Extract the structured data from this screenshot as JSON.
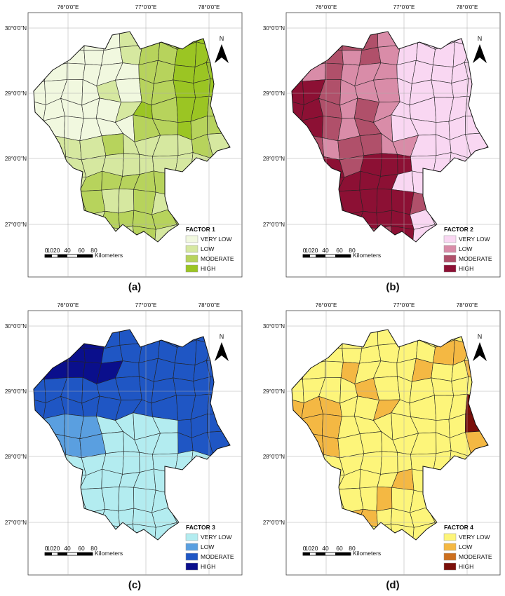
{
  "panels": [
    {
      "label": "(a)",
      "legend_title": "FACTOR 1",
      "legend": [
        {
          "label": "VERY LOW",
          "color": "#f1f8df"
        },
        {
          "label": "LOW",
          "color": "#d6e8a0"
        },
        {
          "label": "MODERATE",
          "color": "#b7d35c"
        },
        {
          "label": "HIGH",
          "color": "#9bc523"
        }
      ]
    },
    {
      "label": "(b)",
      "legend_title": "FACTOR 2",
      "legend": [
        {
          "label": "VERY LOW",
          "color": "#f9d7f2"
        },
        {
          "label": "LOW",
          "color": "#d98ca8"
        },
        {
          "label": "MODERATE",
          "color": "#b0506a"
        },
        {
          "label": "HIGH",
          "color": "#8c1034"
        }
      ]
    },
    {
      "label": "(c)",
      "legend_title": "FACTOR 3",
      "legend": [
        {
          "label": "VERY LOW",
          "color": "#b3ecf0"
        },
        {
          "label": "LOW",
          "color": "#5a9fe0"
        },
        {
          "label": "MODERATE",
          "color": "#1f56c4"
        },
        {
          "label": "HIGH",
          "color": "#0a0f8c"
        }
      ]
    },
    {
      "label": "(d)",
      "legend_title": "FACTOR 4",
      "legend": [
        {
          "label": "VERY LOW",
          "color": "#fdf57a"
        },
        {
          "label": "LOW",
          "color": "#f4b843"
        },
        {
          "label": "MODERATE",
          "color": "#cc6f1e"
        },
        {
          "label": "HIGH",
          "color": "#7a0f0a"
        }
      ]
    }
  ],
  "longitude_labels": [
    "76°0'0\"E",
    "77°0'0\"E",
    "78°0'0\"E"
  ],
  "latitude_labels": [
    "30°0'0\"N",
    "29°0'0\"N",
    "28°0'0\"N",
    "27°0'0\"N"
  ],
  "north_label": "N",
  "scale_labels": [
    "0",
    "1020",
    "40",
    "60",
    "80"
  ],
  "scale_unit": "Kilometers"
}
